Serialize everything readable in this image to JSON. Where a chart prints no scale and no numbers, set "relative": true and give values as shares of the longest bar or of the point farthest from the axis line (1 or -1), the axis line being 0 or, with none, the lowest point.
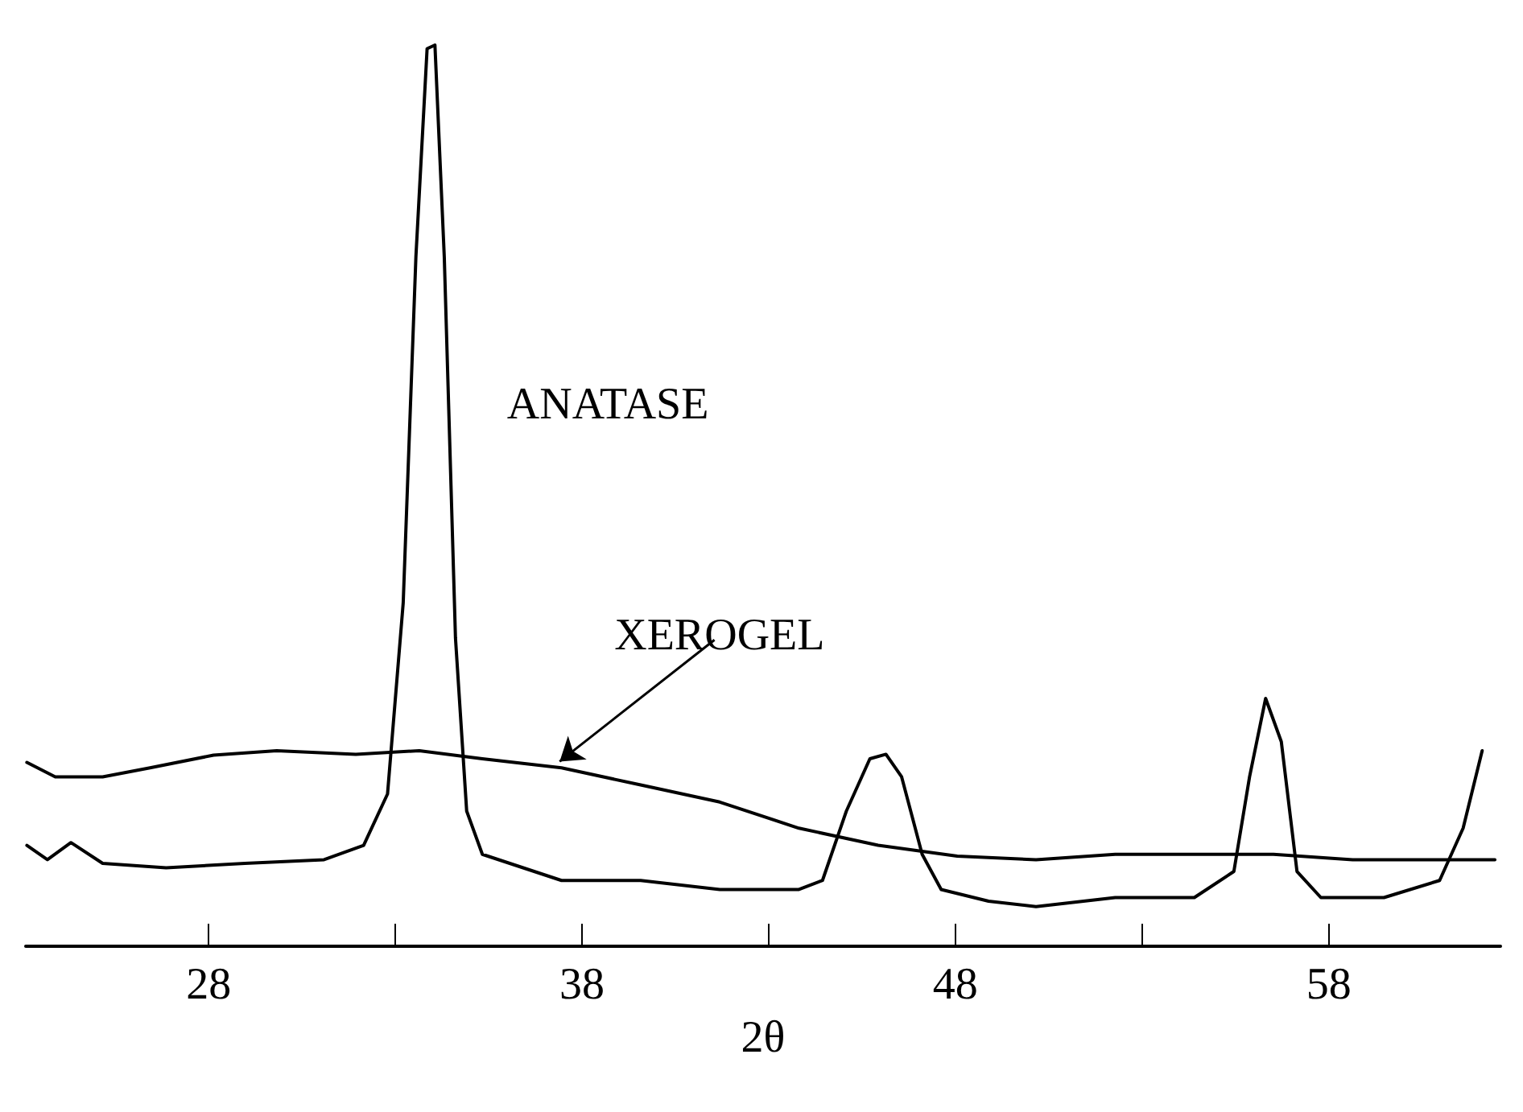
{
  "chart_data": {
    "type": "line",
    "relative": true,
    "xlabel": "2θ",
    "xlim": [
      23.1,
      62.6
    ],
    "xticks": [
      28,
      {
        "value": 33,
        "label": null
      },
      38,
      {
        "value": 43,
        "label": null
      },
      48,
      {
        "value": 53,
        "label": null
      },
      58
    ],
    "tick_labels": "x",
    "marker": "none",
    "line_style": "solid",
    "annotations": [
      "ANATASE",
      {
        "text": "XEROGEL",
        "x": 37.4,
        "y": 0.205
      }
    ],
    "series": [
      {
        "color": "#000000",
        "x": [
          23.13,
          23.68,
          24.31,
          25.16,
          26.86,
          28.97,
          31.09,
          32.15,
          32.79,
          33.21,
          33.55,
          33.85,
          34.06,
          34.31,
          34.61,
          34.91,
          35.33,
          37.45,
          39.57,
          41.69,
          43.81,
          44.44,
          45.08,
          45.71,
          46.14,
          46.56,
          47.11,
          47.62,
          48.89,
          50.16,
          52.28,
          54.4,
          55.46,
          55.88,
          56.31,
          56.73,
          57.15,
          57.79,
          59.48,
          60.97,
          61.6,
          62.11
        ],
        "values": [
          0.112,
          0.096,
          0.115,
          0.092,
          0.087,
          0.092,
          0.096,
          0.112,
          0.169,
          0.381,
          0.765,
          0.996,
          1,
          0.765,
          0.342,
          0.15,
          0.102,
          0.073,
          0.073,
          0.063,
          0.063,
          0.073,
          0.15,
          0.208,
          0.213,
          0.188,
          0.102,
          0.063,
          0.05,
          0.044,
          0.054,
          0.054,
          0.083,
          0.188,
          0.275,
          0.227,
          0.083,
          0.054,
          0.054,
          0.073,
          0.131,
          0.217
        ]
      },
      {
        "color": "#000000",
        "x": [
          23.13,
          23.89,
          25.16,
          26.43,
          28.13,
          29.82,
          31.94,
          33.64,
          35.33,
          37.45,
          39.57,
          41.69,
          43.81,
          45.93,
          48.05,
          50.16,
          52.28,
          54.4,
          56.52,
          58.64,
          60.75,
          62.45
        ],
        "values": [
          0.204,
          0.188,
          0.188,
          0.198,
          0.212,
          0.217,
          0.213,
          0.217,
          0.208,
          0.198,
          0.179,
          0.16,
          0.131,
          0.112,
          0.1,
          0.096,
          0.102,
          0.102,
          0.102,
          0.096,
          0.096,
          0.096
        ]
      }
    ]
  }
}
